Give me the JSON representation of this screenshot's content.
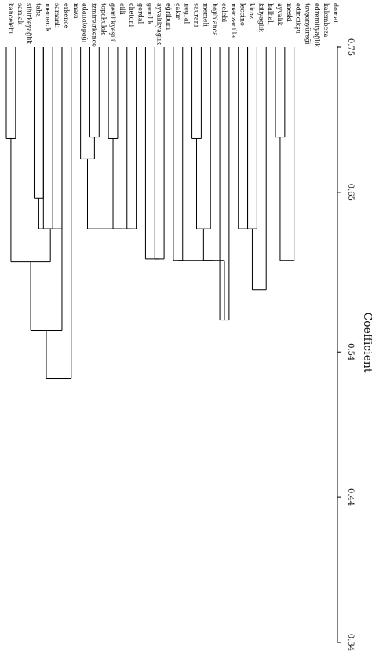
{
  "dendrogram": {
    "axis_title": "Coefficient",
    "axis_min": 0.34,
    "axis_max": 0.75,
    "ticks": [
      {
        "value": 0.75,
        "label": "0.75"
      },
      {
        "value": 0.65,
        "label": "0.65"
      },
      {
        "value": 0.54,
        "label": "0.54"
      },
      {
        "value": 0.44,
        "label": "0.44"
      },
      {
        "value": 0.34,
        "label": "0.34"
      }
    ],
    "leaves": [
      "kancelebi",
      "sarılak",
      "sihirkeyağlık",
      "taha",
      "memecik",
      "samanlı",
      "erkence",
      "mavi",
      "adanatopağı",
      "izmireirkence",
      "topakulak",
      "gemlikyeşilü",
      "çilli",
      "chetoni",
      "gordal",
      "gemlik",
      "ayvalıkyağlık",
      "eğribum",
      "çakır",
      "negral",
      "saurani",
      "memeli",
      "hojiblanca",
      "çelebi",
      "manzanilla",
      "leccino",
      "kiraz",
      "kiliyağlık",
      "halhalı",
      "ayvalık",
      "meski",
      "edincikşu",
      "tavşanyüreği",
      "edremityağlık",
      "kalembeza",
      "domat"
    ],
    "merges": [
      {
        "a": "L0",
        "b": "L1",
        "height": 0.687
      },
      {
        "a": "L3",
        "b": "L4",
        "height": 0.646
      },
      {
        "a": "L4",
        "b": "L5",
        "height": 0.625
      },
      {
        "a": "L3",
        "b": "L6",
        "height": 0.625
      },
      {
        "a": "L0",
        "b": "L3",
        "height": 0.602
      },
      {
        "a": "L0",
        "b": "L6",
        "height": 0.555
      },
      {
        "a": "L0",
        "b": "L7",
        "height": 0.522
      },
      {
        "a": "L9",
        "b": "L10",
        "height": 0.688
      },
      {
        "a": "L8",
        "b": "L9",
        "height": 0.673
      },
      {
        "a": "L11",
        "b": "L12",
        "height": 0.687
      },
      {
        "a": "L13",
        "b": "L14",
        "height": 0.625
      },
      {
        "a": "L11",
        "b": "L13",
        "height": 0.625
      },
      {
        "a": "L8",
        "b": "L11",
        "height": 0.625
      },
      {
        "a": "L16",
        "b": "L17",
        "height": 0.604
      },
      {
        "a": "L15",
        "b": "L16",
        "height": 0.604
      },
      {
        "a": "L18",
        "b": "L19",
        "height": 0.603
      },
      {
        "a": "L20",
        "b": "L21",
        "height": 0.687
      },
      {
        "a": "L20",
        "b": "L22",
        "height": 0.625
      },
      {
        "a": "L23",
        "b": "L24",
        "height": 0.562
      },
      {
        "a": "L20",
        "b": "L23",
        "height": 0.603
      },
      {
        "a": "L18",
        "b": "L20",
        "height": 0.603
      },
      {
        "a": "L25",
        "b": "L26",
        "height": 0.625
      },
      {
        "a": "L26",
        "b": "L27",
        "height": 0.625
      },
      {
        "a": "L26",
        "b": "L28",
        "height": 0.583
      },
      {
        "a": "L29",
        "b": "L30",
        "height": 0.688
      },
      {
        "a": "L29",
        "b": "L31",
        "height": 0.603
      }
    ]
  }
}
